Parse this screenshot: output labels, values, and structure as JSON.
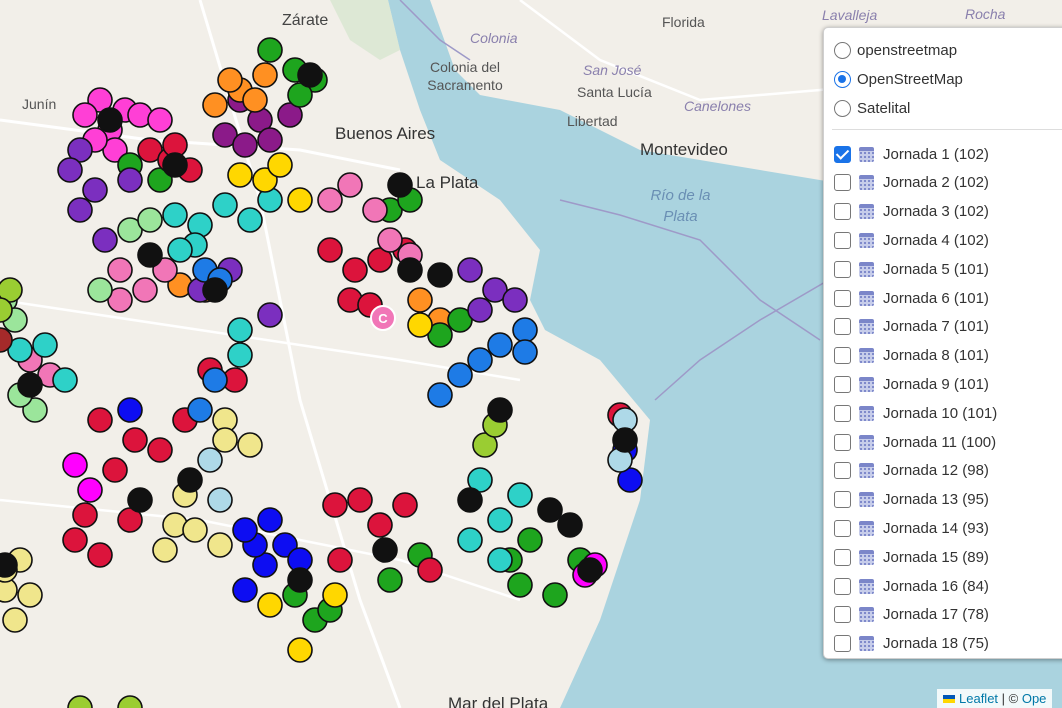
{
  "map": {
    "places": [
      {
        "text": "Zárate",
        "cls": "city"
      },
      {
        "text": "Florida",
        "cls": "small"
      },
      {
        "text": "Lavalleja",
        "cls": "ital"
      },
      {
        "text": "Rocha",
        "cls": "ital"
      },
      {
        "text": "Colonia",
        "cls": "ital"
      },
      {
        "text": "Colonia del Sacramento",
        "cls": "small"
      },
      {
        "text": "San José",
        "cls": "ital"
      },
      {
        "text": "Santa Lucía",
        "cls": "small"
      },
      {
        "text": "Canelones",
        "cls": "ital"
      },
      {
        "text": "Libertad",
        "cls": "small"
      },
      {
        "text": "Buenos Aires",
        "cls": "big"
      },
      {
        "text": "Montevideo",
        "cls": "big"
      },
      {
        "text": "La Plata",
        "cls": "big"
      },
      {
        "text": "Río de la Plata",
        "cls": "water"
      },
      {
        "text": "Junín",
        "cls": "small"
      },
      {
        "text": "Mar del Plata",
        "cls": "big"
      }
    ],
    "marker_label": "C"
  },
  "layer_control": {
    "base_layers": [
      {
        "label": "openstreetmap",
        "selected": false
      },
      {
        "label": "OpenStreetMap",
        "selected": true
      },
      {
        "label": "Satelital",
        "selected": false
      }
    ],
    "overlays": [
      {
        "label": "Jornada 1 (102)",
        "checked": true
      },
      {
        "label": "Jornada 2 (102)",
        "checked": false
      },
      {
        "label": "Jornada 3 (102)",
        "checked": false
      },
      {
        "label": "Jornada 4 (102)",
        "checked": false
      },
      {
        "label": "Jornada 5 (101)",
        "checked": false
      },
      {
        "label": "Jornada 6 (101)",
        "checked": false
      },
      {
        "label": "Jornada 7 (101)",
        "checked": false
      },
      {
        "label": "Jornada 8 (101)",
        "checked": false
      },
      {
        "label": "Jornada 9 (101)",
        "checked": false
      },
      {
        "label": "Jornada 10 (101)",
        "checked": false
      },
      {
        "label": "Jornada 11 (100)",
        "checked": false
      },
      {
        "label": "Jornada 12 (98)",
        "checked": false
      },
      {
        "label": "Jornada 13 (95)",
        "checked": false
      },
      {
        "label": "Jornada 14 (93)",
        "checked": false
      },
      {
        "label": "Jornada 15 (89)",
        "checked": false
      },
      {
        "label": "Jornada 16 (84)",
        "checked": false
      },
      {
        "label": "Jornada 17 (78)",
        "checked": false
      },
      {
        "label": "Jornada 18 (75)",
        "checked": false
      }
    ]
  },
  "attribution": {
    "leaflet": "Leaflet",
    "sep": " | © ",
    "osm": "Ope"
  },
  "colors": {
    "land": "#f2efe9",
    "water": "#aad3df",
    "boundary": "#9e9ac8",
    "road": "#ffffff",
    "marker_stroke": "#111111"
  }
}
